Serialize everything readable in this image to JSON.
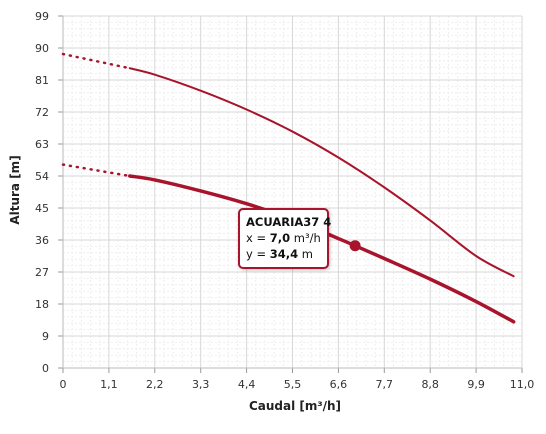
{
  "chart_data": {
    "type": "line",
    "xlabel": "Caudal  [m³/h]",
    "ylabel": "Altura [m]",
    "xlim": [
      0,
      11.0
    ],
    "ylim": [
      0,
      99
    ],
    "x_ticks": [
      "0",
      "1,1",
      "2,2",
      "3,3",
      "4,4",
      "5,5",
      "6,6",
      "7,7",
      "8,8",
      "9,9",
      "11,0"
    ],
    "y_ticks": [
      "0",
      "9",
      "18",
      "27",
      "36",
      "45",
      "54",
      "63",
      "72",
      "81",
      "90",
      "99"
    ],
    "grid": true,
    "colors": {
      "series": "#a8142b",
      "grid_major": "#d7d7d7",
      "grid_minor": "#eeeeee"
    },
    "series": [
      {
        "style": "thin",
        "dotted_x": [
          0,
          1.6
        ],
        "x": [
          1.6,
          2.2,
          3.3,
          4.4,
          5.5,
          6.6,
          7.7,
          8.8,
          9.9,
          10.8
        ],
        "y": [
          84.3,
          82.5,
          78.0,
          72.7,
          66.5,
          59.2,
          50.8,
          41.5,
          31.5,
          25.8
        ],
        "dotted_y": [
          88.3,
          84.3
        ]
      },
      {
        "style": "thick",
        "dotted_x": [
          0,
          1.6
        ],
        "x": [
          1.6,
          2.2,
          3.3,
          4.4,
          5.5,
          6.6,
          7.0,
          7.7,
          8.8,
          9.9,
          10.8
        ],
        "y": [
          54.0,
          52.9,
          49.8,
          46.2,
          41.8,
          36.4,
          34.4,
          30.8,
          25.0,
          18.7,
          13.0
        ],
        "dotted_y": [
          57.2,
          54.0
        ]
      }
    ],
    "tooltip": {
      "title": "ACUARIA37 4",
      "x_label": "x =",
      "x_value": "7,0",
      "x_unit": "m³/h",
      "y_label": "y =",
      "y_value": "34,4",
      "y_unit": "m",
      "point_x": 7.0,
      "point_y": 34.4
    }
  }
}
